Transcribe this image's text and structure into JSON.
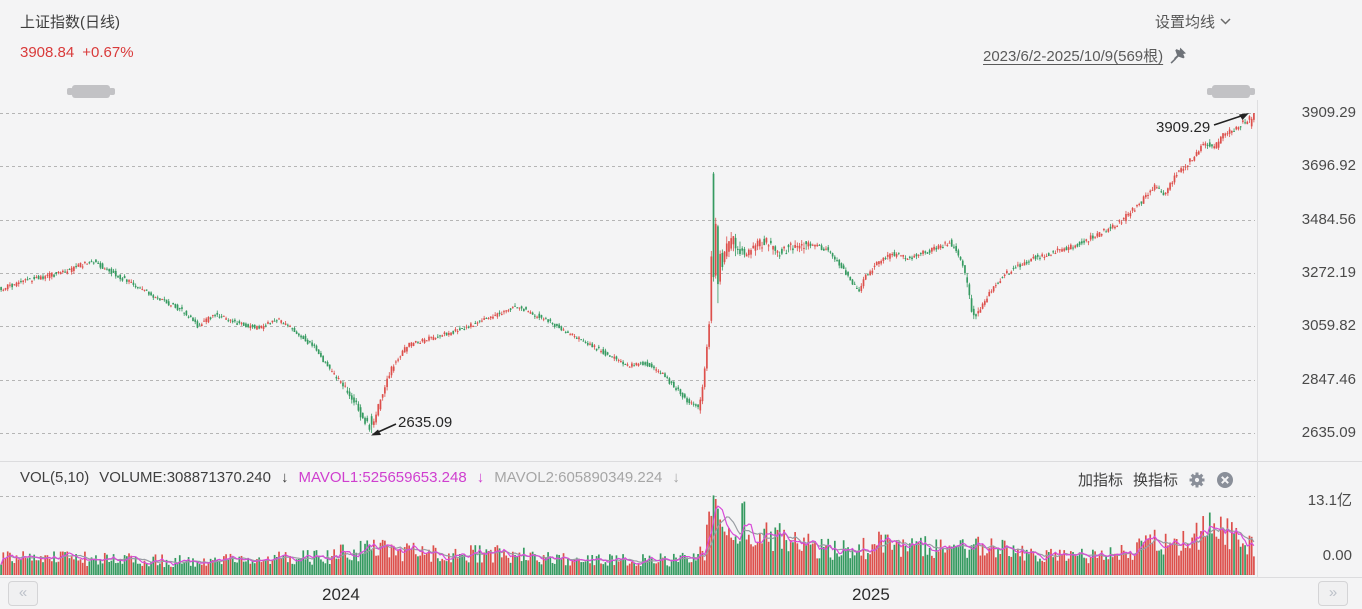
{
  "header": {
    "title": "上证指数(日线)",
    "price": "3908.84",
    "change": "+0.67%",
    "ma_settings_label": "设置均线",
    "date_range": "2023/6/2-2025/10/9(569根)"
  },
  "vol_header": {
    "vol_label": "VOL(5,10)",
    "volume_label": "VOLUME:308871370.240",
    "mavol1_label": "MAVOL1:525659653.248",
    "mavol2_label": "MAVOL2:605890349.224",
    "down_arrow": "↓",
    "add_indicator": "加指标",
    "switch_indicator": "换指标"
  },
  "icons": {
    "prev_glyph": "«",
    "next_glyph": "»",
    "pin": "pushpin-icon",
    "gear": "gear-icon",
    "close": "circle-close-icon",
    "chevron": "chevron-down-icon"
  },
  "x_axis": {
    "years": [
      "2024",
      "2025"
    ]
  },
  "volume_axis": {
    "max_label": "13.1亿",
    "min_label": "0.00"
  },
  "annotations": {
    "high": "3909.29",
    "low": "2635.09"
  },
  "colors": {
    "up": "#dd4f4b",
    "down": "#359a60",
    "mavol1": "#d84bd8",
    "mavol2": "#999da3",
    "grid": "#b5b5b5",
    "price_red": "#d93a3a",
    "background": "#f4f4f5"
  },
  "chart_data": {
    "type": "candlestick+volume",
    "symbol": "上证指数",
    "period": "日线",
    "range_start": "2023/6/2",
    "range_end": "2025/10/9",
    "bars": 569,
    "last_close": 3908.84,
    "change_pct": "+0.67%",
    "high_marker": 3909.29,
    "low_marker": 2635.09,
    "price_axis_ticks": [
      "3909.29",
      "3696.92",
      "3484.56",
      "3272.19",
      "3059.82",
      "2847.46",
      "2635.09"
    ],
    "price_axis_values": [
      3909.29,
      3696.92,
      3484.56,
      3272.19,
      3059.82,
      2847.46,
      2635.09
    ],
    "volume_axis_max_yi": 13.1,
    "volume_indicators": {
      "VOLUME": 308871370.24,
      "MAVOL1": 525659653.248,
      "MAVOL2": 605890349.224
    },
    "legend": [
      "VOL(5,10)",
      "VOLUME",
      "MAVOL1",
      "MAVOL2"
    ],
    "grid": "horizontal-dashed",
    "price_anchors": [
      [
        0,
        3210
      ],
      [
        0.024,
        3248
      ],
      [
        0.048,
        3272
      ],
      [
        0.072,
        3322
      ],
      [
        0.09,
        3270
      ],
      [
        0.105,
        3230
      ],
      [
        0.12,
        3185
      ],
      [
        0.143,
        3128
      ],
      [
        0.157,
        3062
      ],
      [
        0.172,
        3108
      ],
      [
        0.19,
        3068
      ],
      [
        0.205,
        3052
      ],
      [
        0.22,
        3088
      ],
      [
        0.235,
        3042
      ],
      [
        0.25,
        2975
      ],
      [
        0.262,
        2890
      ],
      [
        0.272,
        2830
      ],
      [
        0.281,
        2770
      ],
      [
        0.288,
        2700
      ],
      [
        0.2955,
        2650
      ],
      [
        0.3,
        2725
      ],
      [
        0.307,
        2838
      ],
      [
        0.315,
        2925
      ],
      [
        0.325,
        2985
      ],
      [
        0.34,
        3008
      ],
      [
        0.355,
        3028
      ],
      [
        0.37,
        3052
      ],
      [
        0.385,
        3088
      ],
      [
        0.4,
        3118
      ],
      [
        0.412,
        3142
      ],
      [
        0.425,
        3108
      ],
      [
        0.44,
        3072
      ],
      [
        0.455,
        3025
      ],
      [
        0.47,
        2985
      ],
      [
        0.485,
        2945
      ],
      [
        0.5,
        2905
      ],
      [
        0.515,
        2912
      ],
      [
        0.528,
        2868
      ],
      [
        0.54,
        2805
      ],
      [
        0.55,
        2752
      ],
      [
        0.558,
        2742
      ],
      [
        0.5635,
        2870
      ],
      [
        0.5675,
        3120
      ],
      [
        0.5695,
        3455
      ],
      [
        0.574,
        3300
      ],
      [
        0.579,
        3385
      ],
      [
        0.585,
        3408
      ],
      [
        0.592,
        3345
      ],
      [
        0.6,
        3372
      ],
      [
        0.61,
        3398
      ],
      [
        0.62,
        3355
      ],
      [
        0.632,
        3378
      ],
      [
        0.645,
        3392
      ],
      [
        0.658,
        3368
      ],
      [
        0.668,
        3318
      ],
      [
        0.678,
        3248
      ],
      [
        0.684,
        3198
      ],
      [
        0.69,
        3262
      ],
      [
        0.7,
        3315
      ],
      [
        0.712,
        3348
      ],
      [
        0.724,
        3332
      ],
      [
        0.736,
        3352
      ],
      [
        0.748,
        3372
      ],
      [
        0.757,
        3398
      ],
      [
        0.763,
        3352
      ],
      [
        0.77,
        3262
      ],
      [
        0.7745,
        3120
      ],
      [
        0.778,
        3098
      ],
      [
        0.784,
        3152
      ],
      [
        0.792,
        3212
      ],
      [
        0.8,
        3262
      ],
      [
        0.812,
        3302
      ],
      [
        0.824,
        3332
      ],
      [
        0.838,
        3352
      ],
      [
        0.852,
        3372
      ],
      [
        0.866,
        3402
      ],
      [
        0.88,
        3438
      ],
      [
        0.894,
        3478
      ],
      [
        0.905,
        3532
      ],
      [
        0.913,
        3572
      ],
      [
        0.921,
        3615
      ],
      [
        0.929,
        3588
      ],
      [
        0.937,
        3662
      ],
      [
        0.944,
        3688
      ],
      [
        0.952,
        3738
      ],
      [
        0.96,
        3792
      ],
      [
        0.968,
        3768
      ],
      [
        0.976,
        3822
      ],
      [
        0.984,
        3842
      ],
      [
        0.992,
        3872
      ],
      [
        1,
        3902
      ]
    ],
    "volume_anchors_yi": [
      [
        0,
        3.1
      ],
      [
        0.05,
        2.8
      ],
      [
        0.1,
        2.5
      ],
      [
        0.15,
        2.3
      ],
      [
        0.2,
        2.5
      ],
      [
        0.25,
        3.0
      ],
      [
        0.285,
        3.8
      ],
      [
        0.3,
        4.6
      ],
      [
        0.32,
        4.0
      ],
      [
        0.35,
        3.3
      ],
      [
        0.39,
        3.5
      ],
      [
        0.43,
        3.1
      ],
      [
        0.47,
        2.7
      ],
      [
        0.51,
        2.4
      ],
      [
        0.545,
        2.6
      ],
      [
        0.561,
        3.6
      ],
      [
        0.5695,
        13.2
      ],
      [
        0.578,
        11.0
      ],
      [
        0.59,
        8.8
      ],
      [
        0.605,
        7.4
      ],
      [
        0.62,
        6.2
      ],
      [
        0.64,
        5.2
      ],
      [
        0.66,
        4.4
      ],
      [
        0.68,
        4.2
      ],
      [
        0.7,
        5.0
      ],
      [
        0.715,
        5.4
      ],
      [
        0.73,
        4.9
      ],
      [
        0.75,
        4.4
      ],
      [
        0.763,
        4.1
      ],
      [
        0.775,
        5.4
      ],
      [
        0.79,
        4.3
      ],
      [
        0.81,
        3.7
      ],
      [
        0.83,
        3.3
      ],
      [
        0.85,
        3.1
      ],
      [
        0.87,
        3.2
      ],
      [
        0.89,
        3.7
      ],
      [
        0.905,
        4.5
      ],
      [
        0.92,
        5.4
      ],
      [
        0.935,
        5.0
      ],
      [
        0.95,
        6.2
      ],
      [
        0.965,
        7.6
      ],
      [
        0.975,
        8.1
      ],
      [
        0.985,
        6.8
      ],
      [
        1,
        5.6
      ]
    ]
  }
}
